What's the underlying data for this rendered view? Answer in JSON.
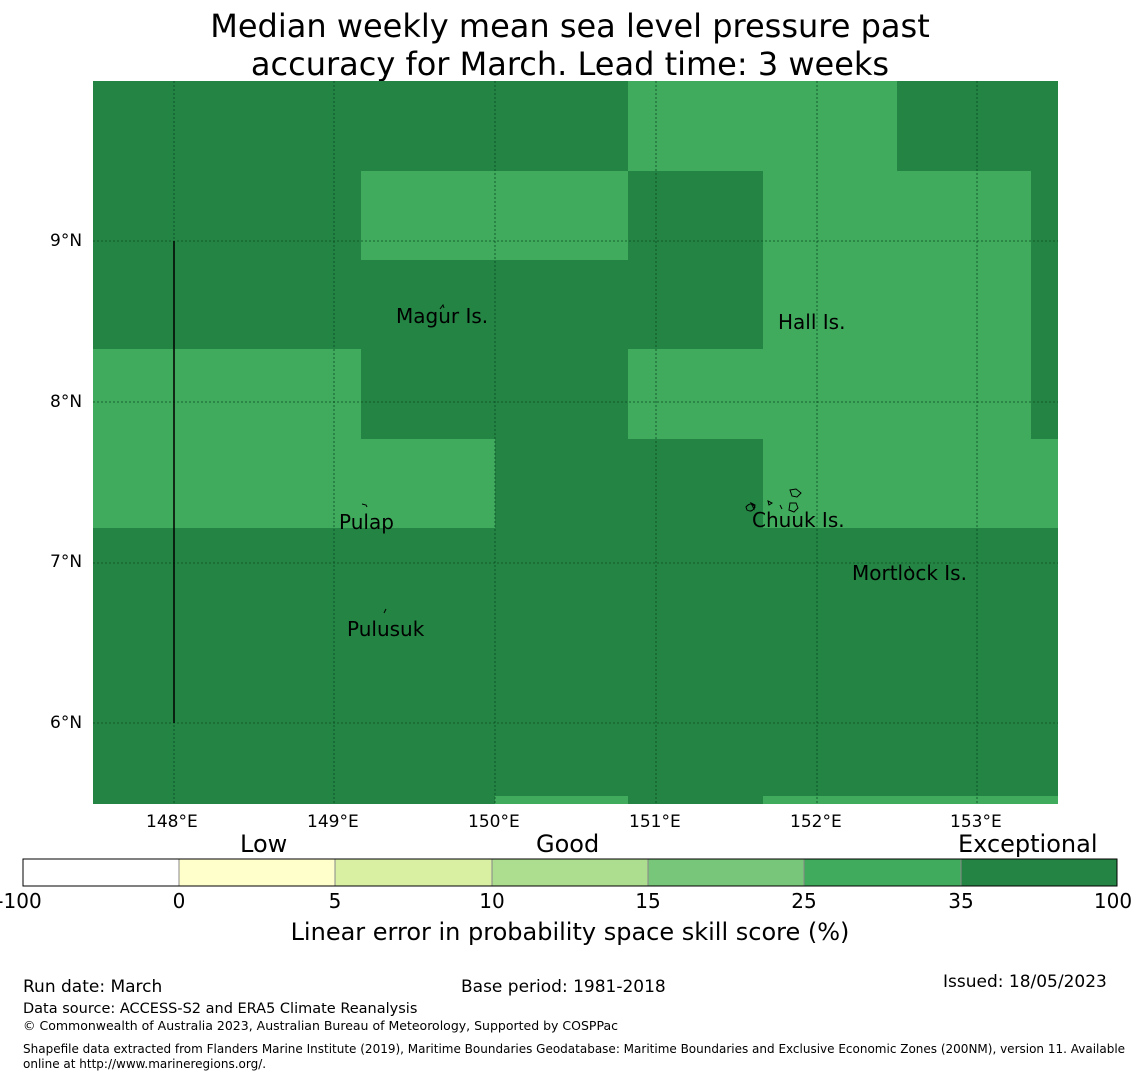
{
  "title_line1": "Median weekly mean sea level pressure past",
  "title_line2": "accuracy for March. Lead time: 3 weeks",
  "map": {
    "lon_range": [
      147.5,
      153.5
    ],
    "lat_range": [
      5.5,
      10.0
    ],
    "lon_ticks": [
      "148°E",
      "149°E",
      "150°E",
      "151°E",
      "152°E",
      "153°E"
    ],
    "lat_ticks": [
      "9°N",
      "8°N",
      "7°N",
      "6°N"
    ],
    "places": [
      {
        "name": "Magur Is.",
        "lon": 149.68,
        "lat": 8.55
      },
      {
        "name": "Hall Is.",
        "lon": 151.98,
        "lat": 8.5
      },
      {
        "name": "Pulap",
        "lon": 149.21,
        "lat": 7.27
      },
      {
        "name": "Chuuk Is.",
        "lon": 151.87,
        "lat": 7.28
      },
      {
        "name": "Mortlock Is.",
        "lon": 152.58,
        "lat": 6.95
      },
      {
        "name": "Pulusuk",
        "lon": 149.33,
        "lat": 6.62
      }
    ],
    "colors": {
      "exceptional": "#238443",
      "good25": "#41ab5d"
    }
  },
  "colorbar": {
    "category_labels": [
      "Low",
      "Good",
      "Exceptional"
    ],
    "ticks": [
      "-100",
      "0",
      "5",
      "10",
      "15",
      "25",
      "35",
      "100"
    ],
    "colors": [
      "#ffffff",
      "#ffffcc",
      "#d9f0a3",
      "#addd8e",
      "#78c679",
      "#41ab5d",
      "#238443"
    ],
    "title": "Linear error in probability space skill score (%)"
  },
  "footer": {
    "run_date": "Run date: March",
    "base_period": "Base period: 1981-2018",
    "issued": "Issued: 18/05/2023",
    "data_source": "Data source: ACCESS-S2 and ERA5 Climate Reanalysis",
    "copyright": "© Commonwealth of Australia 2023, Australian Bureau of Meteorology, Supported by COSPPac",
    "shapefile": "Shapefile data extracted from Flanders Marine Institute (2019), Maritime Boundaries Geodatabase: Maritime Boundaries and Exclusive Economic Zones (200NM), version 11. Available online at http://www.marineregions.org/."
  }
}
